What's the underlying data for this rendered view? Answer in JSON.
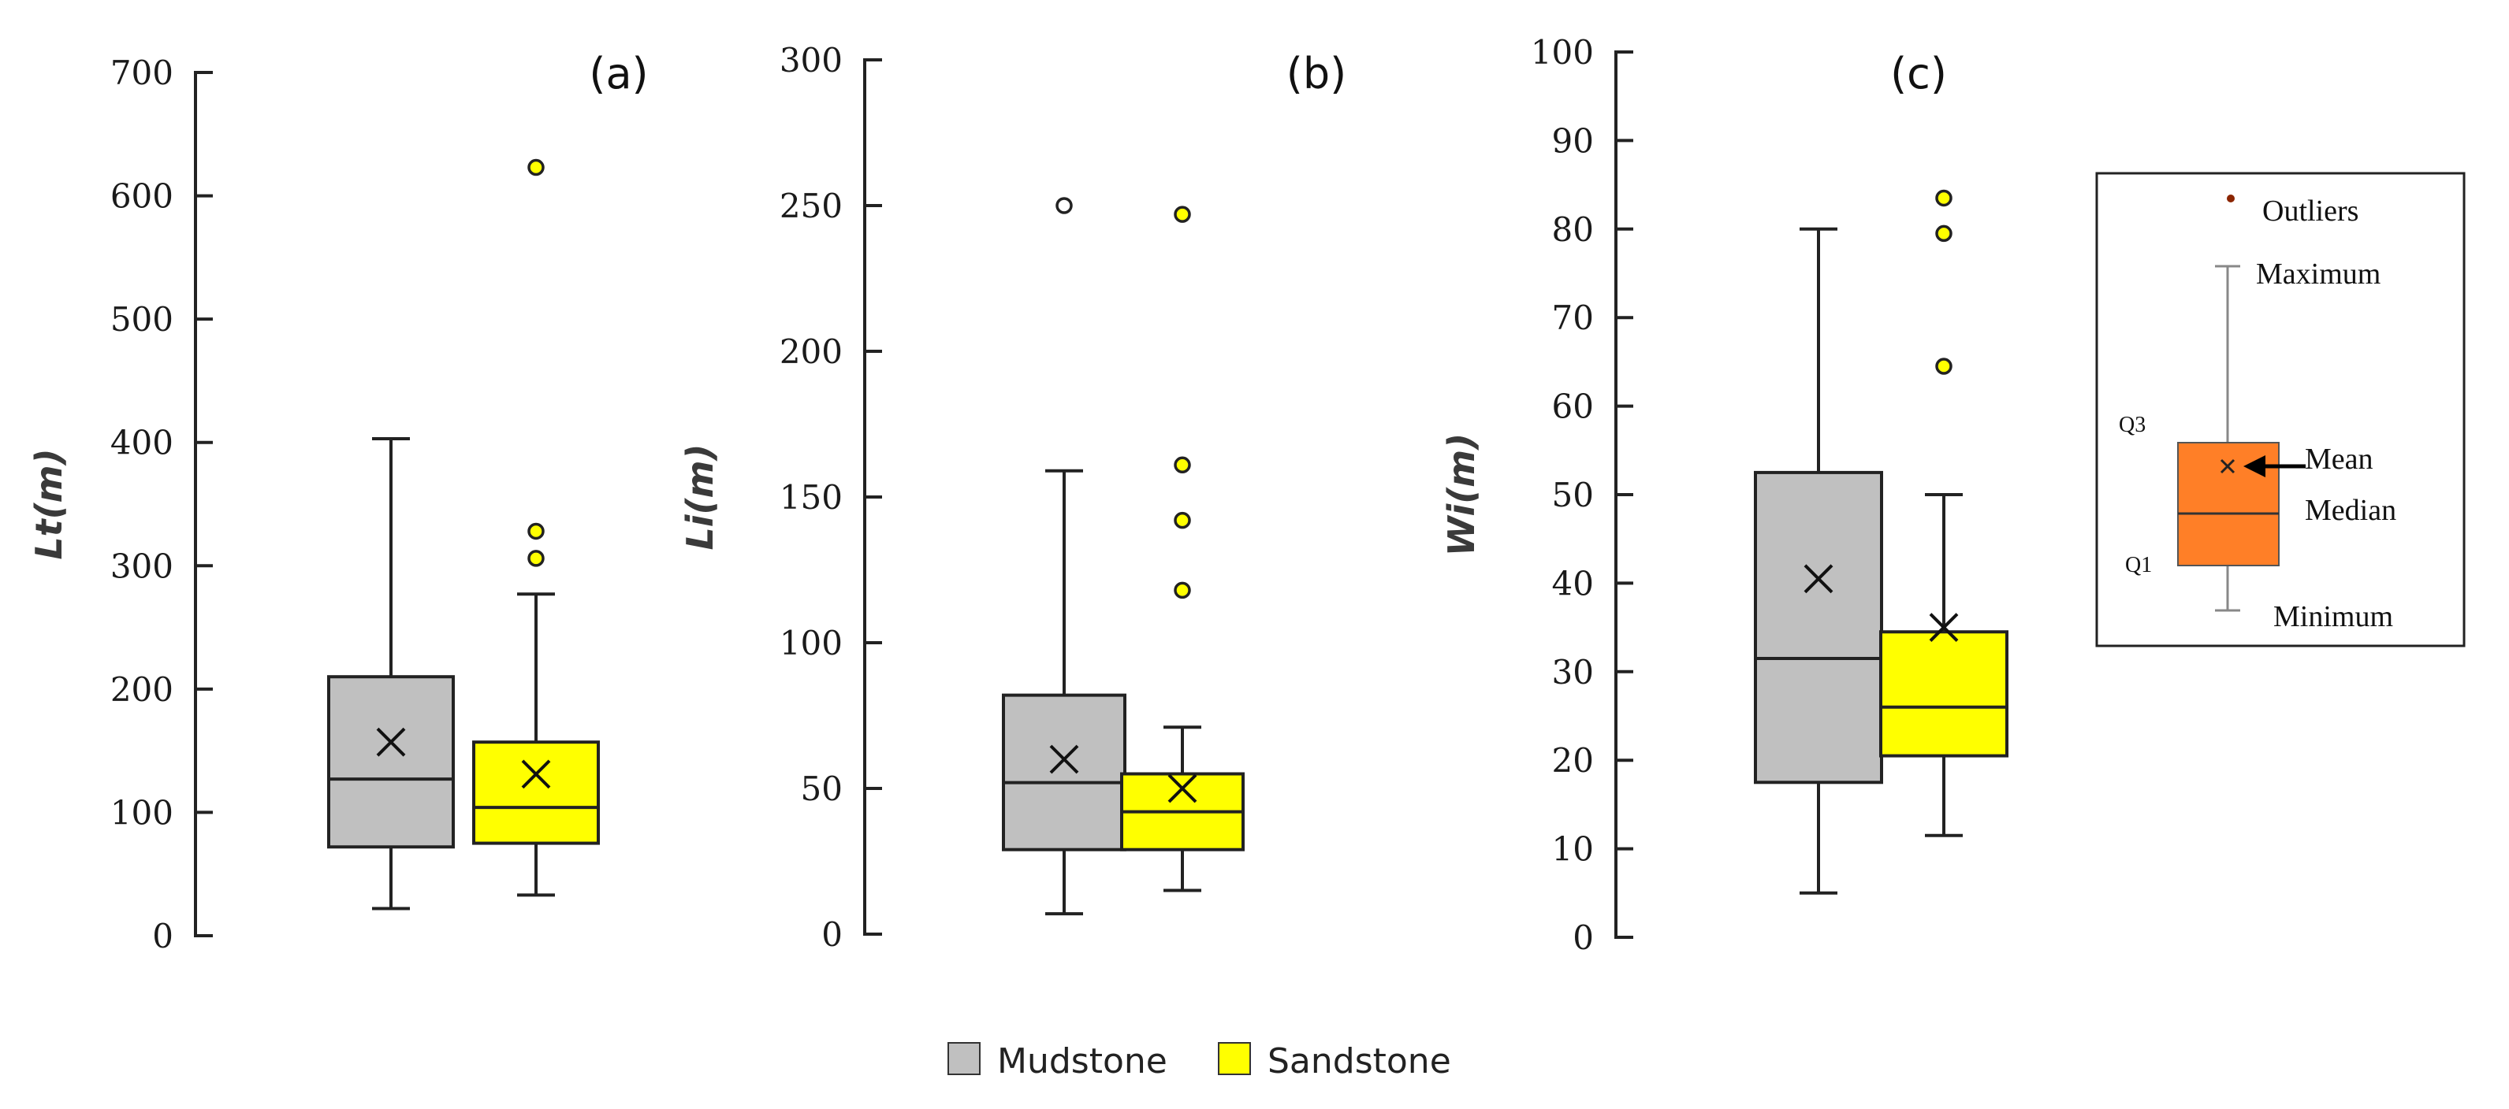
{
  "chart_data": [
    {
      "type": "box",
      "panel_label": "(a)",
      "ylabel": "Lt(m)",
      "ylim": [
        0,
        700
      ],
      "yticks": [
        "0",
        "100",
        "200",
        "300",
        "400",
        "500",
        "600",
        "700"
      ],
      "series": [
        {
          "name": "Mudstone",
          "min": 22,
          "q1": 72,
          "median": 127,
          "q3": 210,
          "max": 403,
          "mean": 157,
          "outliers": []
        },
        {
          "name": "Sandstone",
          "min": 33,
          "q1": 75,
          "median": 104,
          "q3": 157,
          "max": 277,
          "mean": 131,
          "outliers": [
            306,
            328,
            623
          ]
        }
      ]
    },
    {
      "type": "box",
      "panel_label": "(b)",
      "ylabel": "Li(m)",
      "ylim": [
        0,
        300
      ],
      "yticks": [
        "0",
        "50",
        "100",
        "150",
        "200",
        "250",
        "300"
      ],
      "series": [
        {
          "name": "Mudstone",
          "min": 7,
          "q1": 29,
          "median": 52,
          "q3": 82,
          "max": 159,
          "mean": 60,
          "outliers": [
            250
          ]
        },
        {
          "name": "Sandstone",
          "min": 15,
          "q1": 29,
          "median": 42,
          "q3": 55,
          "max": 71,
          "mean": 50,
          "outliers": [
            118,
            142,
            161,
            247
          ]
        }
      ]
    },
    {
      "type": "box",
      "panel_label": "(c)",
      "ylabel": "Wi(m)",
      "ylim": [
        0,
        100
      ],
      "yticks": [
        "0",
        "10",
        "20",
        "30",
        "40",
        "50",
        "60",
        "70",
        "80",
        "90",
        "100"
      ],
      "series": [
        {
          "name": "Mudstone",
          "min": 5,
          "q1": 17.5,
          "median": 31.5,
          "q3": 52.5,
          "max": 80,
          "mean": 40.5,
          "outliers": []
        },
        {
          "name": "Sandstone",
          "min": 11.5,
          "q1": 20.5,
          "median": 26,
          "q3": 34.5,
          "max": 50,
          "mean": 35,
          "outliers": [
            64.5,
            79.5,
            83.5
          ]
        }
      ]
    }
  ],
  "legend": {
    "items": [
      {
        "label": "Mudstone",
        "color": "#c0c0c0"
      },
      {
        "label": "Sandstone",
        "color": "#ffff00"
      }
    ]
  },
  "key": {
    "outliers": "Outliers",
    "maximum": "Maximum",
    "q3": "Q3",
    "mean": "Mean",
    "median": "Median",
    "q1": "Q1",
    "minimum": "Minimum",
    "box_color": "#ff7f27",
    "outlier_color": "#8b2500"
  },
  "colors": {
    "mudstone": "#c0c0c0",
    "sandstone": "#ffff00",
    "outlier_stroke": "#222222"
  }
}
